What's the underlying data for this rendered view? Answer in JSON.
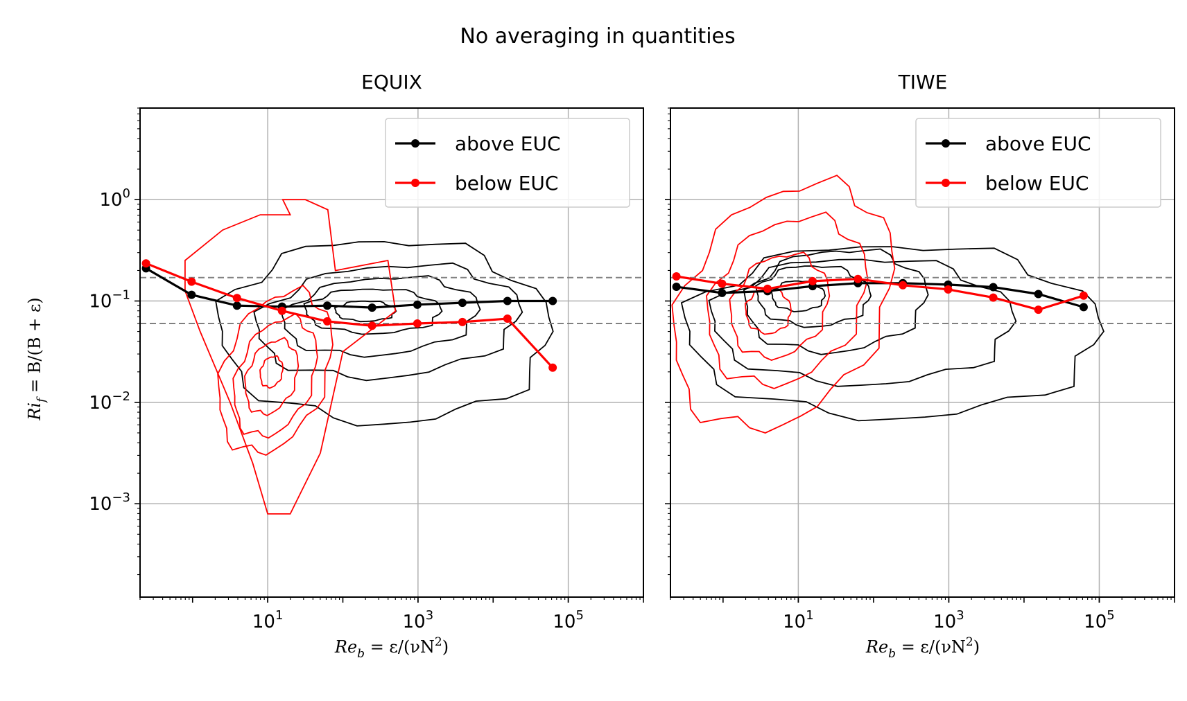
{
  "figure": {
    "suptitle": "No averaging in quantities",
    "ylabel_parts": [
      "Ri",
      "f",
      " = B/(B + ε)"
    ],
    "xlabel_parts": [
      "Re",
      "b",
      " = ε/(νN",
      "2",
      ")"
    ]
  },
  "colors": {
    "above": "#000000",
    "below": "#ff0000",
    "grid": "#b0b0b0",
    "ref_lines": "#808080"
  },
  "chart_data": [
    {
      "type": "line",
      "title": "EQUIX",
      "xscale": "log",
      "yscale": "log",
      "xlim": [
        0.2,
        1000000
      ],
      "ylim": [
        0.00012,
        8
      ],
      "xticks": [
        {
          "base": "10",
          "exp": "1",
          "value": 10
        },
        {
          "base": "10",
          "exp": "3",
          "value": 1000
        },
        {
          "base": "10",
          "exp": "5",
          "value": 100000
        }
      ],
      "yticks": [
        {
          "base": "10",
          "exp": "0",
          "value": 1
        },
        {
          "base": "10",
          "exp": "−1",
          "value": 0.1
        },
        {
          "base": "10",
          "exp": "−2",
          "value": 0.01
        },
        {
          "base": "10",
          "exp": "−3",
          "value": 0.001
        }
      ],
      "grid": true,
      "reference_lines_y": [
        0.17,
        0.06
      ],
      "legend": {
        "position": "top-right",
        "entries": [
          "above EUC",
          "below EUC"
        ]
      },
      "series": [
        {
          "name": "above EUC",
          "color": "#000000",
          "x": [
            0.24,
            0.97,
            3.9,
            15.5,
            62,
            245,
            980,
            3900,
            15500,
            62000
          ],
          "y": [
            0.21,
            0.115,
            0.09,
            0.088,
            0.09,
            0.086,
            0.092,
            0.096,
            0.1,
            0.1
          ]
        },
        {
          "name": "below EUC",
          "color": "#ff0000",
          "x": [
            0.24,
            0.97,
            3.9,
            15.5,
            62,
            245,
            980,
            3900,
            15500,
            62000
          ],
          "y": [
            0.235,
            0.155,
            0.107,
            0.08,
            0.063,
            0.057,
            0.06,
            0.062,
            0.067,
            0.022
          ]
        }
      ]
    },
    {
      "type": "line",
      "title": "TIWE",
      "xscale": "log",
      "yscale": "log",
      "xlim": [
        0.2,
        1000000
      ],
      "ylim": [
        0.00012,
        8
      ],
      "xticks": [
        {
          "base": "10",
          "exp": "1",
          "value": 10
        },
        {
          "base": "10",
          "exp": "3",
          "value": 1000
        },
        {
          "base": "10",
          "exp": "5",
          "value": 100000
        }
      ],
      "yticks": [
        {
          "base": "10",
          "exp": "0",
          "value": 1
        },
        {
          "base": "10",
          "exp": "−1",
          "value": 0.1
        },
        {
          "base": "10",
          "exp": "−2",
          "value": 0.01
        },
        {
          "base": "10",
          "exp": "−3",
          "value": 0.001
        }
      ],
      "grid": true,
      "reference_lines_y": [
        0.17,
        0.06
      ],
      "legend": {
        "position": "top-right",
        "entries": [
          "above EUC",
          "below EUC"
        ]
      },
      "series": [
        {
          "name": "above EUC",
          "color": "#000000",
          "x": [
            0.24,
            0.97,
            3.9,
            15.5,
            62,
            245,
            980,
            3900,
            15500,
            62000
          ],
          "y": [
            0.138,
            0.12,
            0.125,
            0.14,
            0.15,
            0.15,
            0.145,
            0.137,
            0.117,
            0.087
          ]
        },
        {
          "name": "below EUC",
          "color": "#ff0000",
          "x": [
            0.24,
            0.97,
            3.9,
            15.5,
            62,
            245,
            980,
            3900,
            15500,
            62000
          ],
          "y": [
            0.175,
            0.148,
            0.132,
            0.157,
            0.165,
            0.143,
            0.13,
            0.108,
            0.082,
            0.113
          ]
        }
      ]
    }
  ]
}
